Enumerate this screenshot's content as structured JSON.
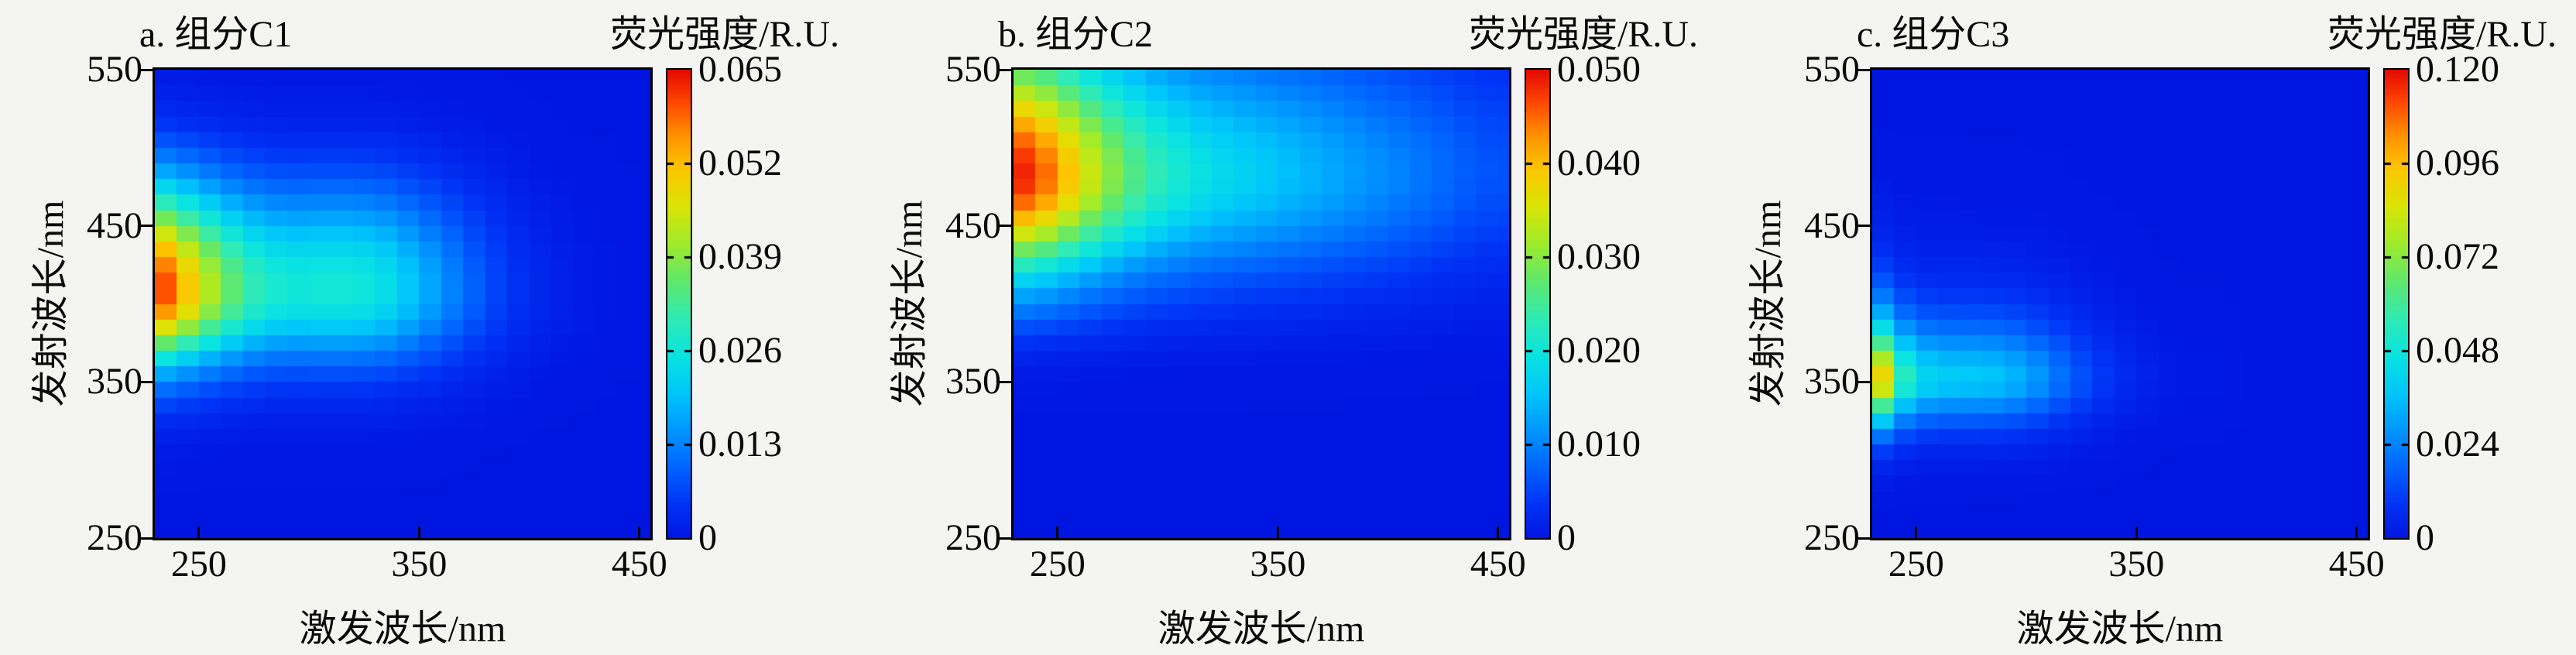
{
  "figure": {
    "background_color": "#f4f4f2",
    "text_color": "#0a0a0a",
    "xlabel": "激发波长/nm",
    "ylabel": "发射波长/nm",
    "colorbar_title": "荧光强度/R.U."
  },
  "colormap": {
    "name": "jet",
    "background_low_color": "#0016e0",
    "peak_high_color": "#e40a00",
    "stops": [
      [
        0.0,
        0,
        22,
        224
      ],
      [
        0.07,
        0,
        50,
        245
      ],
      [
        0.15,
        0,
        100,
        255
      ],
      [
        0.23,
        0,
        150,
        255
      ],
      [
        0.31,
        0,
        198,
        250
      ],
      [
        0.39,
        10,
        228,
        225
      ],
      [
        0.47,
        48,
        235,
        180
      ],
      [
        0.55,
        96,
        232,
        108
      ],
      [
        0.63,
        160,
        235,
        44
      ],
      [
        0.71,
        220,
        228,
        5
      ],
      [
        0.79,
        252,
        198,
        0
      ],
      [
        0.86,
        255,
        146,
        0
      ],
      [
        0.93,
        255,
        72,
        0
      ],
      [
        1.0,
        228,
        10,
        0
      ]
    ]
  },
  "chart_data": [
    {
      "type": "heatmap",
      "title": "a. 组分C1",
      "xlabel": "激发波长/nm",
      "ylabel": "发射波长/nm",
      "colorbar_label": "荧光强度/R.U.",
      "x_range": [
        230,
        455
      ],
      "y_range": [
        250,
        550
      ],
      "x_ticks": [
        250,
        350,
        450
      ],
      "y_ticks": [
        250,
        350,
        450,
        550
      ],
      "colorbar_max": 0.065,
      "colorbar_ticks": [
        "0.065",
        "0.052",
        "0.039",
        "0.026",
        "0.013",
        "0"
      ],
      "colorbar_tick_values": [
        0.065,
        0.052,
        0.039,
        0.026,
        0.013,
        0
      ],
      "peak": {
        "excitation_nm": 230,
        "emission_nm": 410,
        "value": 0.065
      },
      "model": "rank1_outer_product",
      "excitation_nm": [
        230,
        240,
        250,
        260,
        270,
        280,
        290,
        300,
        310,
        320,
        330,
        340,
        350,
        360,
        370,
        380,
        390,
        400,
        410,
        420,
        430,
        440,
        450
      ],
      "excitation_loading": [
        1.0,
        0.87,
        0.72,
        0.6,
        0.5,
        0.44,
        0.41,
        0.41,
        0.42,
        0.41,
        0.4,
        0.35,
        0.29,
        0.23,
        0.17,
        0.12,
        0.08,
        0.05,
        0.03,
        0.02,
        0.01,
        0.01,
        0.0
      ],
      "emission_nm": [
        250,
        260,
        270,
        280,
        290,
        300,
        310,
        320,
        330,
        340,
        350,
        360,
        370,
        380,
        390,
        400,
        410,
        420,
        430,
        440,
        450,
        460,
        470,
        480,
        490,
        500,
        510,
        520,
        530,
        540,
        550
      ],
      "emission_loading": [
        0.0,
        0.0,
        0.0,
        0.0,
        0.01,
        0.01,
        0.02,
        0.04,
        0.08,
        0.13,
        0.22,
        0.34,
        0.5,
        0.68,
        0.85,
        0.97,
        1.0,
        0.97,
        0.9,
        0.8,
        0.68,
        0.55,
        0.43,
        0.32,
        0.23,
        0.16,
        0.1,
        0.06,
        0.04,
        0.02,
        0.01
      ]
    },
    {
      "type": "heatmap",
      "title": "b. 组分C2",
      "xlabel": "激发波长/nm",
      "ylabel": "发射波长/nm",
      "colorbar_label": "荧光强度/R.U.",
      "x_range": [
        230,
        455
      ],
      "y_range": [
        250,
        550
      ],
      "x_ticks": [
        250,
        350,
        450
      ],
      "y_ticks": [
        250,
        350,
        450,
        550
      ],
      "colorbar_max": 0.05,
      "colorbar_ticks": [
        "0.050",
        "0.040",
        "0.030",
        "0.020",
        "0.010",
        "0"
      ],
      "colorbar_tick_values": [
        0.05,
        0.04,
        0.03,
        0.02,
        0.01,
        0
      ],
      "peak": {
        "excitation_nm": 230,
        "emission_nm": 480,
        "value": 0.05
      },
      "model": "rank1_outer_product",
      "excitation_nm": [
        230,
        240,
        250,
        260,
        270,
        280,
        290,
        300,
        310,
        320,
        330,
        340,
        350,
        360,
        370,
        380,
        390,
        400,
        410,
        420,
        430,
        440,
        450
      ],
      "excitation_loading": [
        1.0,
        0.95,
        0.85,
        0.74,
        0.64,
        0.56,
        0.49,
        0.44,
        0.4,
        0.37,
        0.35,
        0.33,
        0.31,
        0.29,
        0.27,
        0.25,
        0.23,
        0.21,
        0.19,
        0.17,
        0.15,
        0.13,
        0.12
      ],
      "emission_nm": [
        250,
        260,
        270,
        280,
        290,
        300,
        310,
        320,
        330,
        340,
        350,
        360,
        370,
        380,
        390,
        400,
        410,
        420,
        430,
        440,
        450,
        460,
        470,
        480,
        490,
        500,
        510,
        520,
        530,
        540,
        550
      ],
      "emission_loading": [
        0.0,
        0.0,
        0.0,
        0.0,
        0.0,
        0.0,
        0.0,
        0.0,
        0.0,
        0.01,
        0.01,
        0.02,
        0.05,
        0.09,
        0.15,
        0.22,
        0.3,
        0.4,
        0.52,
        0.65,
        0.77,
        0.88,
        0.96,
        1.0,
        0.99,
        0.95,
        0.89,
        0.81,
        0.72,
        0.63,
        0.54
      ]
    },
    {
      "type": "heatmap",
      "title": "c. 组分C3",
      "xlabel": "激发波长/nm",
      "ylabel": "发射波长/nm",
      "colorbar_label": "荧光强度/R.U.",
      "x_range": [
        230,
        455
      ],
      "y_range": [
        250,
        550
      ],
      "x_ticks": [
        250,
        350,
        450
      ],
      "y_ticks": [
        250,
        350,
        450,
        550
      ],
      "colorbar_max": 0.12,
      "colorbar_ticks": [
        "0.120",
        "0.096",
        "0.072",
        "0.048",
        "0.024",
        "0"
      ],
      "colorbar_tick_values": [
        0.12,
        0.096,
        0.072,
        0.048,
        0.024,
        0
      ],
      "peak": {
        "excitation_nm": 230,
        "emission_nm": 350,
        "value": 0.12
      },
      "model": "rank1_outer_product",
      "excitation_nm": [
        230,
        240,
        250,
        260,
        270,
        280,
        290,
        300,
        310,
        320,
        330,
        340,
        350,
        360,
        370,
        380,
        390,
        400,
        410,
        420,
        430,
        440,
        450
      ],
      "excitation_loading": [
        1.0,
        0.55,
        0.38,
        0.34,
        0.33,
        0.33,
        0.31,
        0.27,
        0.21,
        0.15,
        0.1,
        0.06,
        0.04,
        0.02,
        0.01,
        0.01,
        0.01,
        0.0,
        0.0,
        0.0,
        0.0,
        0.0,
        0.0
      ],
      "emission_nm": [
        250,
        260,
        270,
        280,
        290,
        300,
        310,
        320,
        330,
        340,
        350,
        360,
        370,
        380,
        390,
        400,
        410,
        420,
        430,
        440,
        450,
        460,
        470,
        480,
        490,
        500,
        510,
        520,
        530,
        540,
        550
      ],
      "emission_loading": [
        0.0,
        0.0,
        0.0,
        0.01,
        0.03,
        0.07,
        0.15,
        0.3,
        0.52,
        0.78,
        1.0,
        0.92,
        0.75,
        0.56,
        0.4,
        0.28,
        0.19,
        0.13,
        0.09,
        0.06,
        0.04,
        0.03,
        0.02,
        0.01,
        0.01,
        0.01,
        0.0,
        0.0,
        0.0,
        0.0,
        0.0
      ]
    }
  ]
}
